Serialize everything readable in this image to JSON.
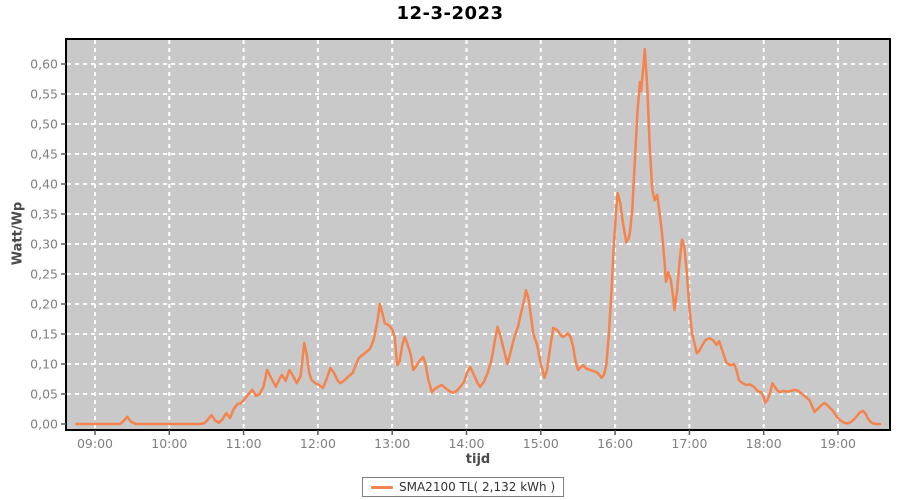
{
  "title": "12-3-2023",
  "colors": {
    "line": "#F5834D",
    "plot_bg": "#C9C9C9",
    "plot_border": "#000000",
    "grid": "#FFFFFF",
    "tick": "#5a5a5a",
    "tick_label": "#7f7f7f",
    "axis_title": "#4a4a4a",
    "title": "#000000",
    "legend_border": "#7f7f7f"
  },
  "y_axis": {
    "label": "Watt/Wp",
    "ticks": [
      {
        "label": "0,00",
        "value": 0.0
      },
      {
        "label": "0,05",
        "value": 0.05
      },
      {
        "label": "0,10",
        "value": 0.1
      },
      {
        "label": "0,15",
        "value": 0.15
      },
      {
        "label": "0,20",
        "value": 0.2
      },
      {
        "label": "0,25",
        "value": 0.25
      },
      {
        "label": "0,30",
        "value": 0.3
      },
      {
        "label": "0,35",
        "value": 0.35
      },
      {
        "label": "0,40",
        "value": 0.4
      },
      {
        "label": "0,45",
        "value": 0.45
      },
      {
        "label": "0,50",
        "value": 0.5
      },
      {
        "label": "0,55",
        "value": 0.55
      },
      {
        "label": "0,60",
        "value": 0.6
      }
    ]
  },
  "x_axis": {
    "label": "tijd",
    "ticks": [
      {
        "label": "09:00",
        "hour": 9
      },
      {
        "label": "10:00",
        "hour": 10
      },
      {
        "label": "11:00",
        "hour": 11
      },
      {
        "label": "12:00",
        "hour": 12
      },
      {
        "label": "13:00",
        "hour": 13
      },
      {
        "label": "14:00",
        "hour": 14
      },
      {
        "label": "15:00",
        "hour": 15
      },
      {
        "label": "16:00",
        "hour": 16
      },
      {
        "label": "17:00",
        "hour": 17
      },
      {
        "label": "18:00",
        "hour": 18
      },
      {
        "label": "19:00",
        "hour": 19
      }
    ]
  },
  "legend": {
    "label": "SMA2100 TL( 2,132 kWh )"
  },
  "chart_data": {
    "type": "line",
    "title": "12-3-2023",
    "xlabel": "tijd",
    "ylabel": "Watt/Wp",
    "ylim": [
      0,
      0.625
    ],
    "xlim_hours": [
      8.6,
      19.75
    ],
    "grid": "white-dashed",
    "legend_position": "bottom-center",
    "x_unit": "minutes_since_midnight",
    "y_unit": "Watt/Wp",
    "series": [
      {
        "name": "SMA2100 TL( 2,132 kWh )",
        "points": [
          [
            525,
            0
          ],
          [
            540,
            0
          ],
          [
            552,
            0
          ],
          [
            560,
            0
          ],
          [
            563,
            0.005
          ],
          [
            566,
            0.012
          ],
          [
            569,
            0.004
          ],
          [
            573,
            0
          ],
          [
            585,
            0
          ],
          [
            600,
            0
          ],
          [
            612,
            0
          ],
          [
            624,
            0
          ],
          [
            628,
            0.001
          ],
          [
            631,
            0.007
          ],
          [
            634,
            0.015
          ],
          [
            637,
            0.006
          ],
          [
            640,
            0.002
          ],
          [
            643,
            0.008
          ],
          [
            646,
            0.018
          ],
          [
            649,
            0.01
          ],
          [
            652,
            0.025
          ],
          [
            655,
            0.033
          ],
          [
            658,
            0.035
          ],
          [
            661,
            0.042
          ],
          [
            664,
            0.05
          ],
          [
            667,
            0.057
          ],
          [
            670,
            0.047
          ],
          [
            673,
            0.05
          ],
          [
            676,
            0.062
          ],
          [
            679,
            0.09
          ],
          [
            682,
            0.078
          ],
          [
            686,
            0.062
          ],
          [
            689,
            0.075
          ],
          [
            691,
            0.082
          ],
          [
            694,
            0.072
          ],
          [
            697,
            0.09
          ],
          [
            700,
            0.08
          ],
          [
            703,
            0.068
          ],
          [
            706,
            0.08
          ],
          [
            709,
            0.135
          ],
          [
            711,
            0.115
          ],
          [
            713,
            0.085
          ],
          [
            715,
            0.073
          ],
          [
            718,
            0.068
          ],
          [
            721,
            0.065
          ],
          [
            724,
            0.06
          ],
          [
            727,
            0.075
          ],
          [
            730,
            0.093
          ],
          [
            733,
            0.085
          ],
          [
            736,
            0.072
          ],
          [
            738,
            0.068
          ],
          [
            741,
            0.072
          ],
          [
            744,
            0.078
          ],
          [
            748,
            0.085
          ],
          [
            751,
            0.1
          ],
          [
            753,
            0.11
          ],
          [
            756,
            0.115
          ],
          [
            759,
            0.12
          ],
          [
            762,
            0.125
          ],
          [
            765,
            0.14
          ],
          [
            768,
            0.17
          ],
          [
            770,
            0.2
          ],
          [
            772,
            0.185
          ],
          [
            774,
            0.168
          ],
          [
            777,
            0.165
          ],
          [
            780,
            0.158
          ],
          [
            782,
            0.145
          ],
          [
            784,
            0.098
          ],
          [
            786,
            0.105
          ],
          [
            788,
            0.13
          ],
          [
            790,
            0.145
          ],
          [
            792,
            0.135
          ],
          [
            795,
            0.115
          ],
          [
            797,
            0.09
          ],
          [
            799,
            0.095
          ],
          [
            802,
            0.105
          ],
          [
            805,
            0.112
          ],
          [
            807,
            0.1
          ],
          [
            809,
            0.075
          ],
          [
            812,
            0.053
          ],
          [
            814,
            0.058
          ],
          [
            817,
            0.062
          ],
          [
            820,
            0.065
          ],
          [
            823,
            0.06
          ],
          [
            826,
            0.055
          ],
          [
            829,
            0.052
          ],
          [
            832,
            0.055
          ],
          [
            835,
            0.062
          ],
          [
            838,
            0.07
          ],
          [
            841,
            0.088
          ],
          [
            843,
            0.095
          ],
          [
            846,
            0.082
          ],
          [
            849,
            0.068
          ],
          [
            851,
            0.062
          ],
          [
            854,
            0.07
          ],
          [
            857,
            0.085
          ],
          [
            860,
            0.105
          ],
          [
            863,
            0.14
          ],
          [
            865,
            0.162
          ],
          [
            867,
            0.15
          ],
          [
            870,
            0.125
          ],
          [
            873,
            0.1
          ],
          [
            875,
            0.115
          ],
          [
            878,
            0.14
          ],
          [
            880,
            0.153
          ],
          [
            882,
            0.165
          ],
          [
            884,
            0.185
          ],
          [
            887,
            0.21
          ],
          [
            888,
            0.223
          ],
          [
            890,
            0.21
          ],
          [
            892,
            0.18
          ],
          [
            894,
            0.15
          ],
          [
            897,
            0.132
          ],
          [
            900,
            0.1
          ],
          [
            903,
            0.077
          ],
          [
            905,
            0.09
          ],
          [
            907,
            0.12
          ],
          [
            910,
            0.16
          ],
          [
            912,
            0.158
          ],
          [
            914,
            0.155
          ],
          [
            916,
            0.148
          ],
          [
            918,
            0.145
          ],
          [
            920,
            0.148
          ],
          [
            922,
            0.151
          ],
          [
            924,
            0.145
          ],
          [
            926,
            0.13
          ],
          [
            928,
            0.105
          ],
          [
            930,
            0.09
          ],
          [
            932,
            0.094
          ],
          [
            934,
            0.098
          ],
          [
            937,
            0.092
          ],
          [
            940,
            0.09
          ],
          [
            943,
            0.088
          ],
          [
            946,
            0.085
          ],
          [
            949,
            0.077
          ],
          [
            951,
            0.082
          ],
          [
            953,
            0.1
          ],
          [
            955,
            0.15
          ],
          [
            957,
            0.22
          ],
          [
            959,
            0.3
          ],
          [
            961,
            0.36
          ],
          [
            962,
            0.385
          ],
          [
            964,
            0.37
          ],
          [
            966,
            0.34
          ],
          [
            968,
            0.315
          ],
          [
            969,
            0.303
          ],
          [
            971,
            0.31
          ],
          [
            972,
            0.32
          ],
          [
            974,
            0.36
          ],
          [
            976,
            0.44
          ],
          [
            978,
            0.52
          ],
          [
            980,
            0.57
          ],
          [
            981,
            0.555
          ],
          [
            983,
            0.6
          ],
          [
            984,
            0.625
          ],
          [
            986,
            0.56
          ],
          [
            988,
            0.46
          ],
          [
            990,
            0.39
          ],
          [
            992,
            0.373
          ],
          [
            994,
            0.382
          ],
          [
            996,
            0.35
          ],
          [
            998,
            0.315
          ],
          [
            1000,
            0.27
          ],
          [
            1001,
            0.237
          ],
          [
            1003,
            0.253
          ],
          [
            1005,
            0.24
          ],
          [
            1007,
            0.21
          ],
          [
            1008,
            0.19
          ],
          [
            1010,
            0.22
          ],
          [
            1012,
            0.27
          ],
          [
            1014,
            0.307
          ],
          [
            1016,
            0.295
          ],
          [
            1018,
            0.25
          ],
          [
            1020,
            0.195
          ],
          [
            1022,
            0.152
          ],
          [
            1024,
            0.135
          ],
          [
            1026,
            0.118
          ],
          [
            1028,
            0.122
          ],
          [
            1030,
            0.13
          ],
          [
            1033,
            0.14
          ],
          [
            1036,
            0.143
          ],
          [
            1039,
            0.14
          ],
          [
            1042,
            0.132
          ],
          [
            1044,
            0.138
          ],
          [
            1047,
            0.12
          ],
          [
            1050,
            0.102
          ],
          [
            1053,
            0.098
          ],
          [
            1056,
            0.1
          ],
          [
            1058,
            0.09
          ],
          [
            1060,
            0.073
          ],
          [
            1063,
            0.068
          ],
          [
            1066,
            0.065
          ],
          [
            1069,
            0.066
          ],
          [
            1072,
            0.062
          ],
          [
            1075,
            0.055
          ],
          [
            1078,
            0.053
          ],
          [
            1080,
            0.045
          ],
          [
            1081,
            0.035
          ],
          [
            1083,
            0.04
          ],
          [
            1085,
            0.05
          ],
          [
            1087,
            0.068
          ],
          [
            1089,
            0.062
          ],
          [
            1091,
            0.056
          ],
          [
            1093,
            0.053
          ],
          [
            1096,
            0.055
          ],
          [
            1099,
            0.054
          ],
          [
            1102,
            0.055
          ],
          [
            1105,
            0.057
          ],
          [
            1108,
            0.055
          ],
          [
            1111,
            0.05
          ],
          [
            1114,
            0.045
          ],
          [
            1117,
            0.04
          ],
          [
            1119,
            0.03
          ],
          [
            1121,
            0.02
          ],
          [
            1123,
            0.024
          ],
          [
            1125,
            0.028
          ],
          [
            1127,
            0.032
          ],
          [
            1129,
            0.035
          ],
          [
            1131,
            0.032
          ],
          [
            1133,
            0.028
          ],
          [
            1136,
            0.022
          ],
          [
            1139,
            0.012
          ],
          [
            1142,
            0.006
          ],
          [
            1145,
            0.002
          ],
          [
            1148,
            0.001
          ],
          [
            1151,
            0.004
          ],
          [
            1154,
            0.01
          ],
          [
            1157,
            0.018
          ],
          [
            1160,
            0.022
          ],
          [
            1162,
            0.018
          ],
          [
            1164,
            0.01
          ],
          [
            1166,
            0.004
          ],
          [
            1168,
            0.001
          ],
          [
            1171,
            0
          ],
          [
            1174,
            0
          ]
        ]
      }
    ]
  }
}
